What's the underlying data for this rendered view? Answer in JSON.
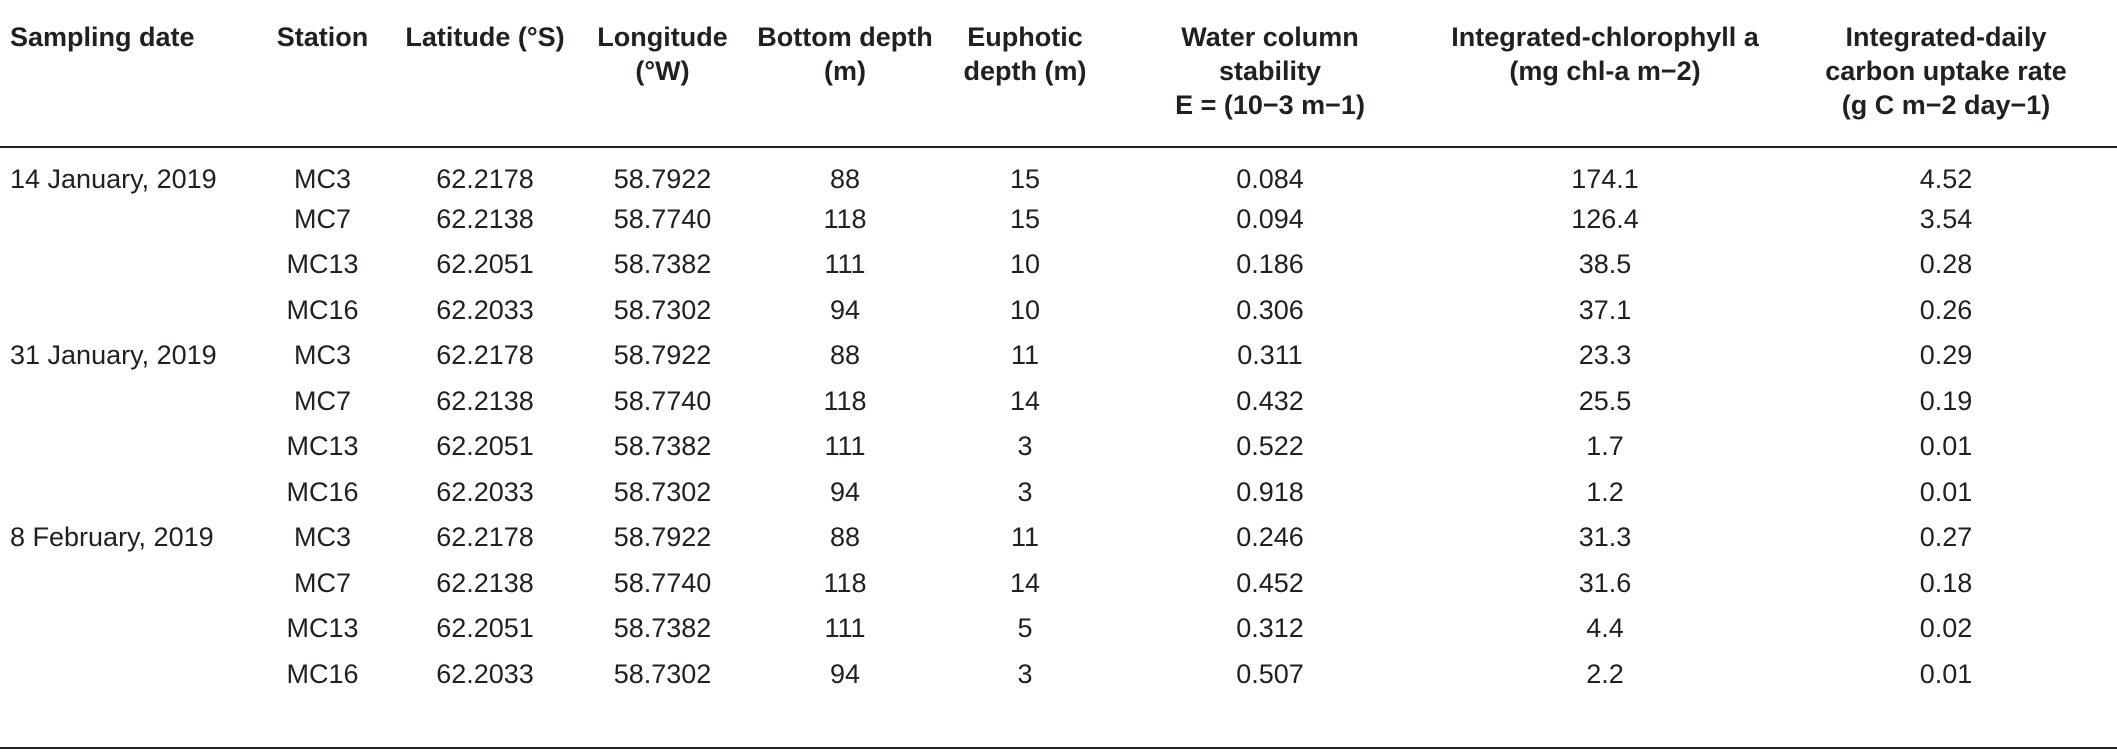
{
  "table": {
    "headers": [
      {
        "lines": [
          "Sampling date"
        ]
      },
      {
        "lines": [
          "Station"
        ]
      },
      {
        "lines": [
          "Latitude (°S)"
        ]
      },
      {
        "lines": [
          "Longitude",
          "(°W)"
        ]
      },
      {
        "lines": [
          "Bottom depth",
          "(m)"
        ]
      },
      {
        "lines": [
          "Euphotic",
          "depth (m)"
        ]
      },
      {
        "lines": [
          "Water column",
          "stability",
          "E = (10−3 m−1)"
        ]
      },
      {
        "lines": [
          "Integrated-chlorophyll a",
          "(mg chl-a m−2)"
        ]
      },
      {
        "lines": [
          "Integrated-daily",
          "carbon uptake rate",
          "(g C m−2 day−1)"
        ]
      }
    ],
    "rows": [
      [
        "14 January, 2019",
        "MC3",
        "62.2178",
        "58.7922",
        "88",
        "15",
        "0.084",
        "174.1",
        "4.52"
      ],
      [
        "",
        "MC7",
        "62.2138",
        "58.7740",
        "118",
        "15",
        "0.094",
        "126.4",
        "3.54"
      ],
      [
        "",
        "MC13",
        "62.2051",
        "58.7382",
        "111",
        "10",
        "0.186",
        "38.5",
        "0.28"
      ],
      [
        "",
        "MC16",
        "62.2033",
        "58.7302",
        "94",
        "10",
        "0.306",
        "37.1",
        "0.26"
      ],
      [
        "31 January, 2019",
        "MC3",
        "62.2178",
        "58.7922",
        "88",
        "11",
        "0.311",
        "23.3",
        "0.29"
      ],
      [
        "",
        "MC7",
        "62.2138",
        "58.7740",
        "118",
        "14",
        "0.432",
        "25.5",
        "0.19"
      ],
      [
        "",
        "MC13",
        "62.2051",
        "58.7382",
        "111",
        "3",
        "0.522",
        "1.7",
        "0.01"
      ],
      [
        "",
        "MC16",
        "62.2033",
        "58.7302",
        "94",
        "3",
        "0.918",
        "1.2",
        "0.01"
      ],
      [
        "8 February, 2019",
        "MC3",
        "62.2178",
        "58.7922",
        "88",
        "11",
        "0.246",
        "31.3",
        "0.27"
      ],
      [
        "",
        "MC7",
        "62.2138",
        "58.7740",
        "118",
        "14",
        "0.452",
        "31.6",
        "0.18"
      ],
      [
        "",
        "MC13",
        "62.2051",
        "58.7382",
        "111",
        "5",
        "0.312",
        "4.4",
        "0.02"
      ],
      [
        "",
        "MC16",
        "62.2033",
        "58.7302",
        "94",
        "3",
        "0.507",
        "2.2",
        "0.01"
      ]
    ]
  }
}
